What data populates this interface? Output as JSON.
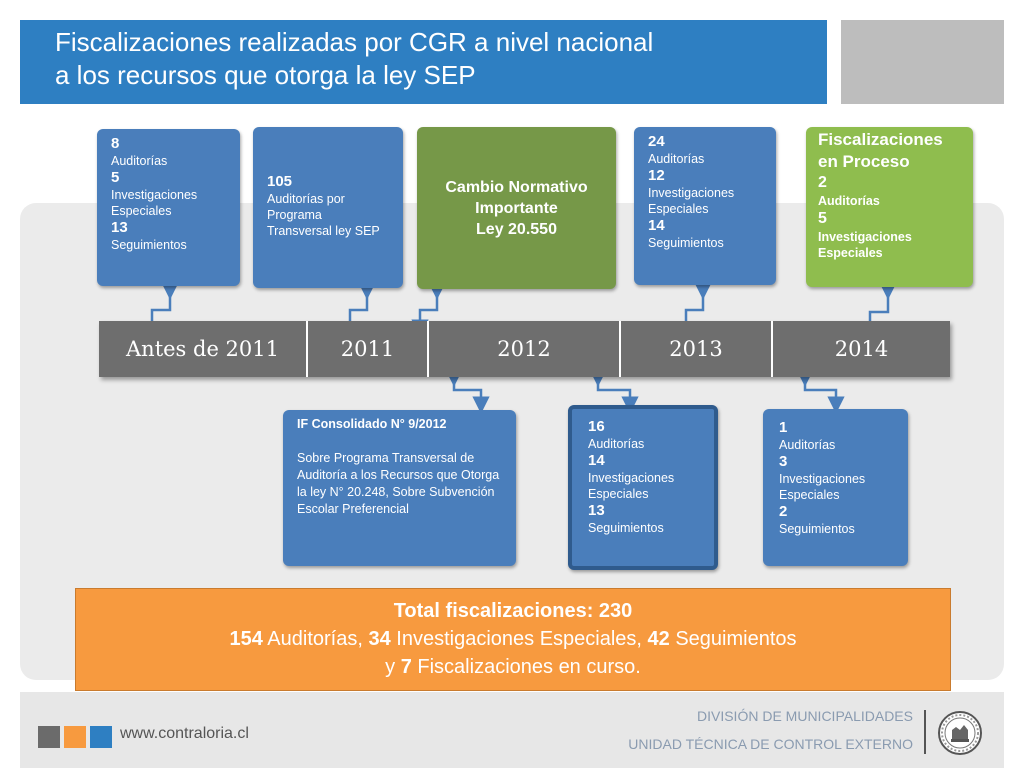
{
  "title": {
    "line1": "Fiscalizaciones realizadas por CGR a nivel nacional",
    "line2": "a los recursos que otorga la ley SEP"
  },
  "timeline": [
    "Antes de 2011",
    "2011",
    "2012",
    "2013",
    "2014"
  ],
  "cards": {
    "pre2011": [
      {
        "n": "8",
        "label": "Auditorías"
      },
      {
        "n": "5",
        "label": "Investigaciones Especiales"
      },
      {
        "n": "13",
        "label": "Seguimientos"
      }
    ],
    "y2011": {
      "n": "105",
      "label": "Auditorías por Programa Transversal ley SEP"
    },
    "y2012_top": {
      "line1": "Cambio Normativo",
      "line2": "Importante",
      "line3": "Ley 20.550"
    },
    "y2013_top": [
      {
        "n": "24",
        "label": "Auditorías"
      },
      {
        "n": "12",
        "label": "Investigaciones Especiales"
      },
      {
        "n": "14",
        "label": "Seguimientos"
      }
    ],
    "y2014_top": {
      "heading1": "Fiscalizaciones",
      "heading2": "en Proceso",
      "items": [
        {
          "n": "2",
          "label": "Auditorías"
        },
        {
          "n": "5",
          "label": "Investigaciones Especiales"
        }
      ]
    },
    "if_consolidado": {
      "heading": "IF Consolidado N° 9/2012",
      "body": "Sobre Programa Transversal de Auditoría a los Recursos que Otorga la ley N° 20.248, Sobre Subvención Escolar Preferencial"
    },
    "y2012_bottom": [
      {
        "n": "16",
        "label": "Auditorías"
      },
      {
        "n": "14",
        "label": "Investigaciones Especiales"
      },
      {
        "n": "13",
        "label": "Seguimientos"
      }
    ],
    "y2014_bottom": [
      {
        "n": "1",
        "label": "Auditorías"
      },
      {
        "n": "3",
        "label": "Investigaciones Especiales"
      },
      {
        "n": "2",
        "label": "Seguimientos"
      }
    ]
  },
  "total": {
    "line1": "Total fiscalizaciones: 230",
    "n_aud": "154",
    "aud": " Auditorías, ",
    "n_inv": "34",
    "inv": " Investigaciones Especiales, ",
    "n_seg": "42",
    "seg": " Seguimientos",
    "y": "y ",
    "n_fisc": "7",
    "fisc": " Fiscalizaciones en curso."
  },
  "footer": {
    "website": "www.contraloria.cl",
    "division": "DIVISIÓN DE MUNICIPALIDADES",
    "unidad": "UNIDAD TÉCNICA DE CONTROL EXTERNO"
  },
  "colors": {
    "title_bg": "#2e7fc2",
    "card_blue": "#4a7ebb",
    "card_green_dark": "#769848",
    "card_green_light": "#8fbd4e",
    "timeline_bg": "#6e6e6e",
    "total_bg": "#f79a3f"
  }
}
